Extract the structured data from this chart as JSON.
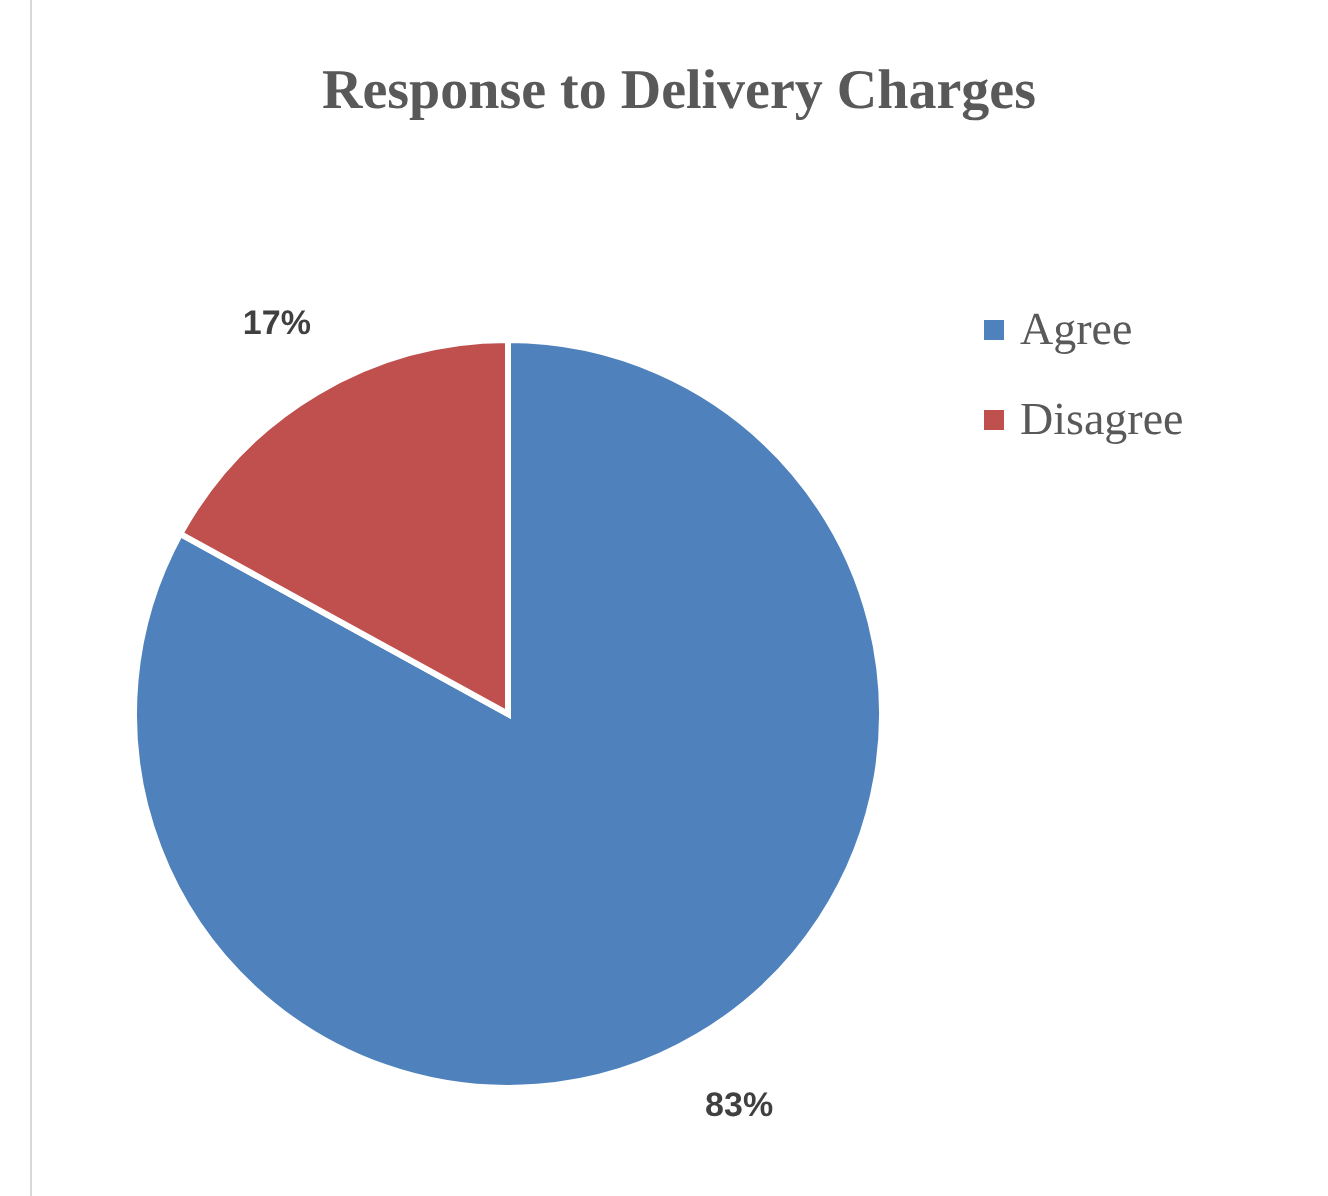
{
  "chart_data": {
    "type": "pie",
    "title": "Response to Delivery Charges",
    "categories": [
      "Agree",
      "Disagree"
    ],
    "values": [
      83,
      17
    ],
    "colors": [
      "#4f81bd",
      "#c0504d"
    ],
    "value_labels": [
      "83%",
      "17%"
    ],
    "legend": "top right"
  }
}
